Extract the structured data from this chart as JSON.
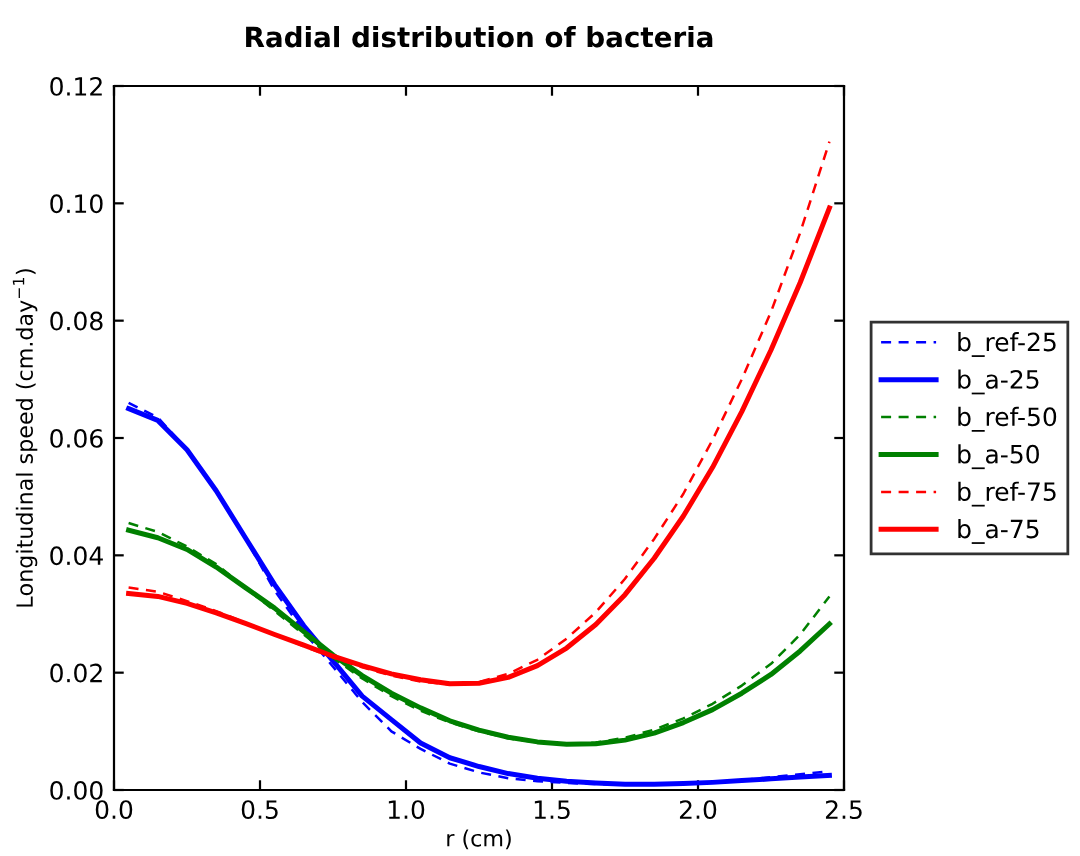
{
  "chart_data": {
    "type": "line",
    "title": "Radial distribution of bacteria",
    "xlabel": "r (cm)",
    "ylabel": "Longitudinal speed (cm.day$^{−1}$)",
    "x": [
      0.05,
      0.15,
      0.25,
      0.35,
      0.45,
      0.55,
      0.65,
      0.75,
      0.85,
      0.95,
      1.05,
      1.15,
      1.25,
      1.35,
      1.45,
      1.55,
      1.65,
      1.75,
      1.85,
      1.95,
      2.05,
      2.15,
      2.25,
      2.35,
      2.45
    ],
    "xlim": [
      0.0,
      2.5
    ],
    "xticks": [
      {
        "value": 0,
        "label": "0.0"
      },
      0.5,
      {
        "value": 1,
        "label": "1.0"
      },
      1.5,
      {
        "value": 2,
        "label": "2.0"
      },
      2.5
    ],
    "ylim": [
      0.0,
      0.12
    ],
    "yticks": [
      {
        "value": 0,
        "label": "0.00"
      },
      {
        "value": 0.02,
        "label": "0.02"
      },
      {
        "value": 0.04,
        "label": "0.04"
      },
      {
        "value": 0.06,
        "label": "0.06"
      },
      {
        "value": 0.08,
        "label": "0.08"
      },
      {
        "value": 0.1,
        "label": "0.10"
      },
      {
        "value": 0.12,
        "label": "0.12"
      }
    ],
    "grid": false,
    "legend": "right",
    "marker": "none",
    "series": [
      {
        "name": "b_ref-25",
        "color": "#0000ff",
        "line_style": "dashed",
        "values": [
          0.066,
          0.0635,
          0.058,
          0.051,
          0.043,
          0.034,
          0.027,
          0.021,
          0.015,
          0.01,
          0.007,
          0.0045,
          0.003,
          0.002,
          0.0015,
          0.0012,
          0.001,
          0.0009,
          0.0009,
          0.001,
          0.0013,
          0.0017,
          0.0022,
          0.0027,
          0.0032
        ]
      },
      {
        "name": "b_a-25",
        "color": "#0000ff",
        "line_style": "solid",
        "values": [
          0.065,
          0.063,
          0.058,
          0.051,
          0.043,
          0.035,
          0.028,
          0.022,
          0.016,
          0.012,
          0.008,
          0.0055,
          0.004,
          0.0028,
          0.002,
          0.0015,
          0.0012,
          0.001,
          0.001,
          0.0011,
          0.0013,
          0.0016,
          0.0019,
          0.0022,
          0.0025
        ]
      },
      {
        "name": "b_ref-50",
        "color": "#008000",
        "line_style": "dashed",
        "values": [
          0.0455,
          0.044,
          0.0415,
          0.0385,
          0.0345,
          0.0305,
          0.0265,
          0.0225,
          0.019,
          0.016,
          0.0135,
          0.0115,
          0.01,
          0.0088,
          0.0081,
          0.0078,
          0.0081,
          0.0089,
          0.0103,
          0.0122,
          0.0147,
          0.0178,
          0.0215,
          0.0265,
          0.033
        ]
      },
      {
        "name": "b_a-50",
        "color": "#008000",
        "line_style": "solid",
        "values": [
          0.0443,
          0.043,
          0.041,
          0.038,
          0.0345,
          0.031,
          0.027,
          0.023,
          0.0195,
          0.0165,
          0.014,
          0.0118,
          0.0102,
          0.009,
          0.0082,
          0.0078,
          0.0079,
          0.0085,
          0.0097,
          0.0115,
          0.0137,
          0.0165,
          0.0197,
          0.0237,
          0.0283
        ]
      },
      {
        "name": "b_ref-75",
        "color": "#ff0000",
        "line_style": "dashed",
        "values": [
          0.0345,
          0.0338,
          0.0322,
          0.0305,
          0.0285,
          0.0265,
          0.0245,
          0.0226,
          0.0209,
          0.0195,
          0.0185,
          0.018,
          0.0184,
          0.0198,
          0.0222,
          0.0258,
          0.0303,
          0.036,
          0.0428,
          0.0505,
          0.0597,
          0.07,
          0.0815,
          0.095,
          0.1105
        ]
      },
      {
        "name": "b_a-75",
        "color": "#ff0000",
        "line_style": "solid",
        "values": [
          0.0335,
          0.033,
          0.0318,
          0.0302,
          0.0284,
          0.0265,
          0.0247,
          0.0228,
          0.0212,
          0.0198,
          0.0188,
          0.0181,
          0.0182,
          0.0192,
          0.0212,
          0.0242,
          0.0282,
          0.0333,
          0.0395,
          0.0467,
          0.055,
          0.0645,
          0.075,
          0.0865,
          0.0992
        ]
      }
    ]
  }
}
